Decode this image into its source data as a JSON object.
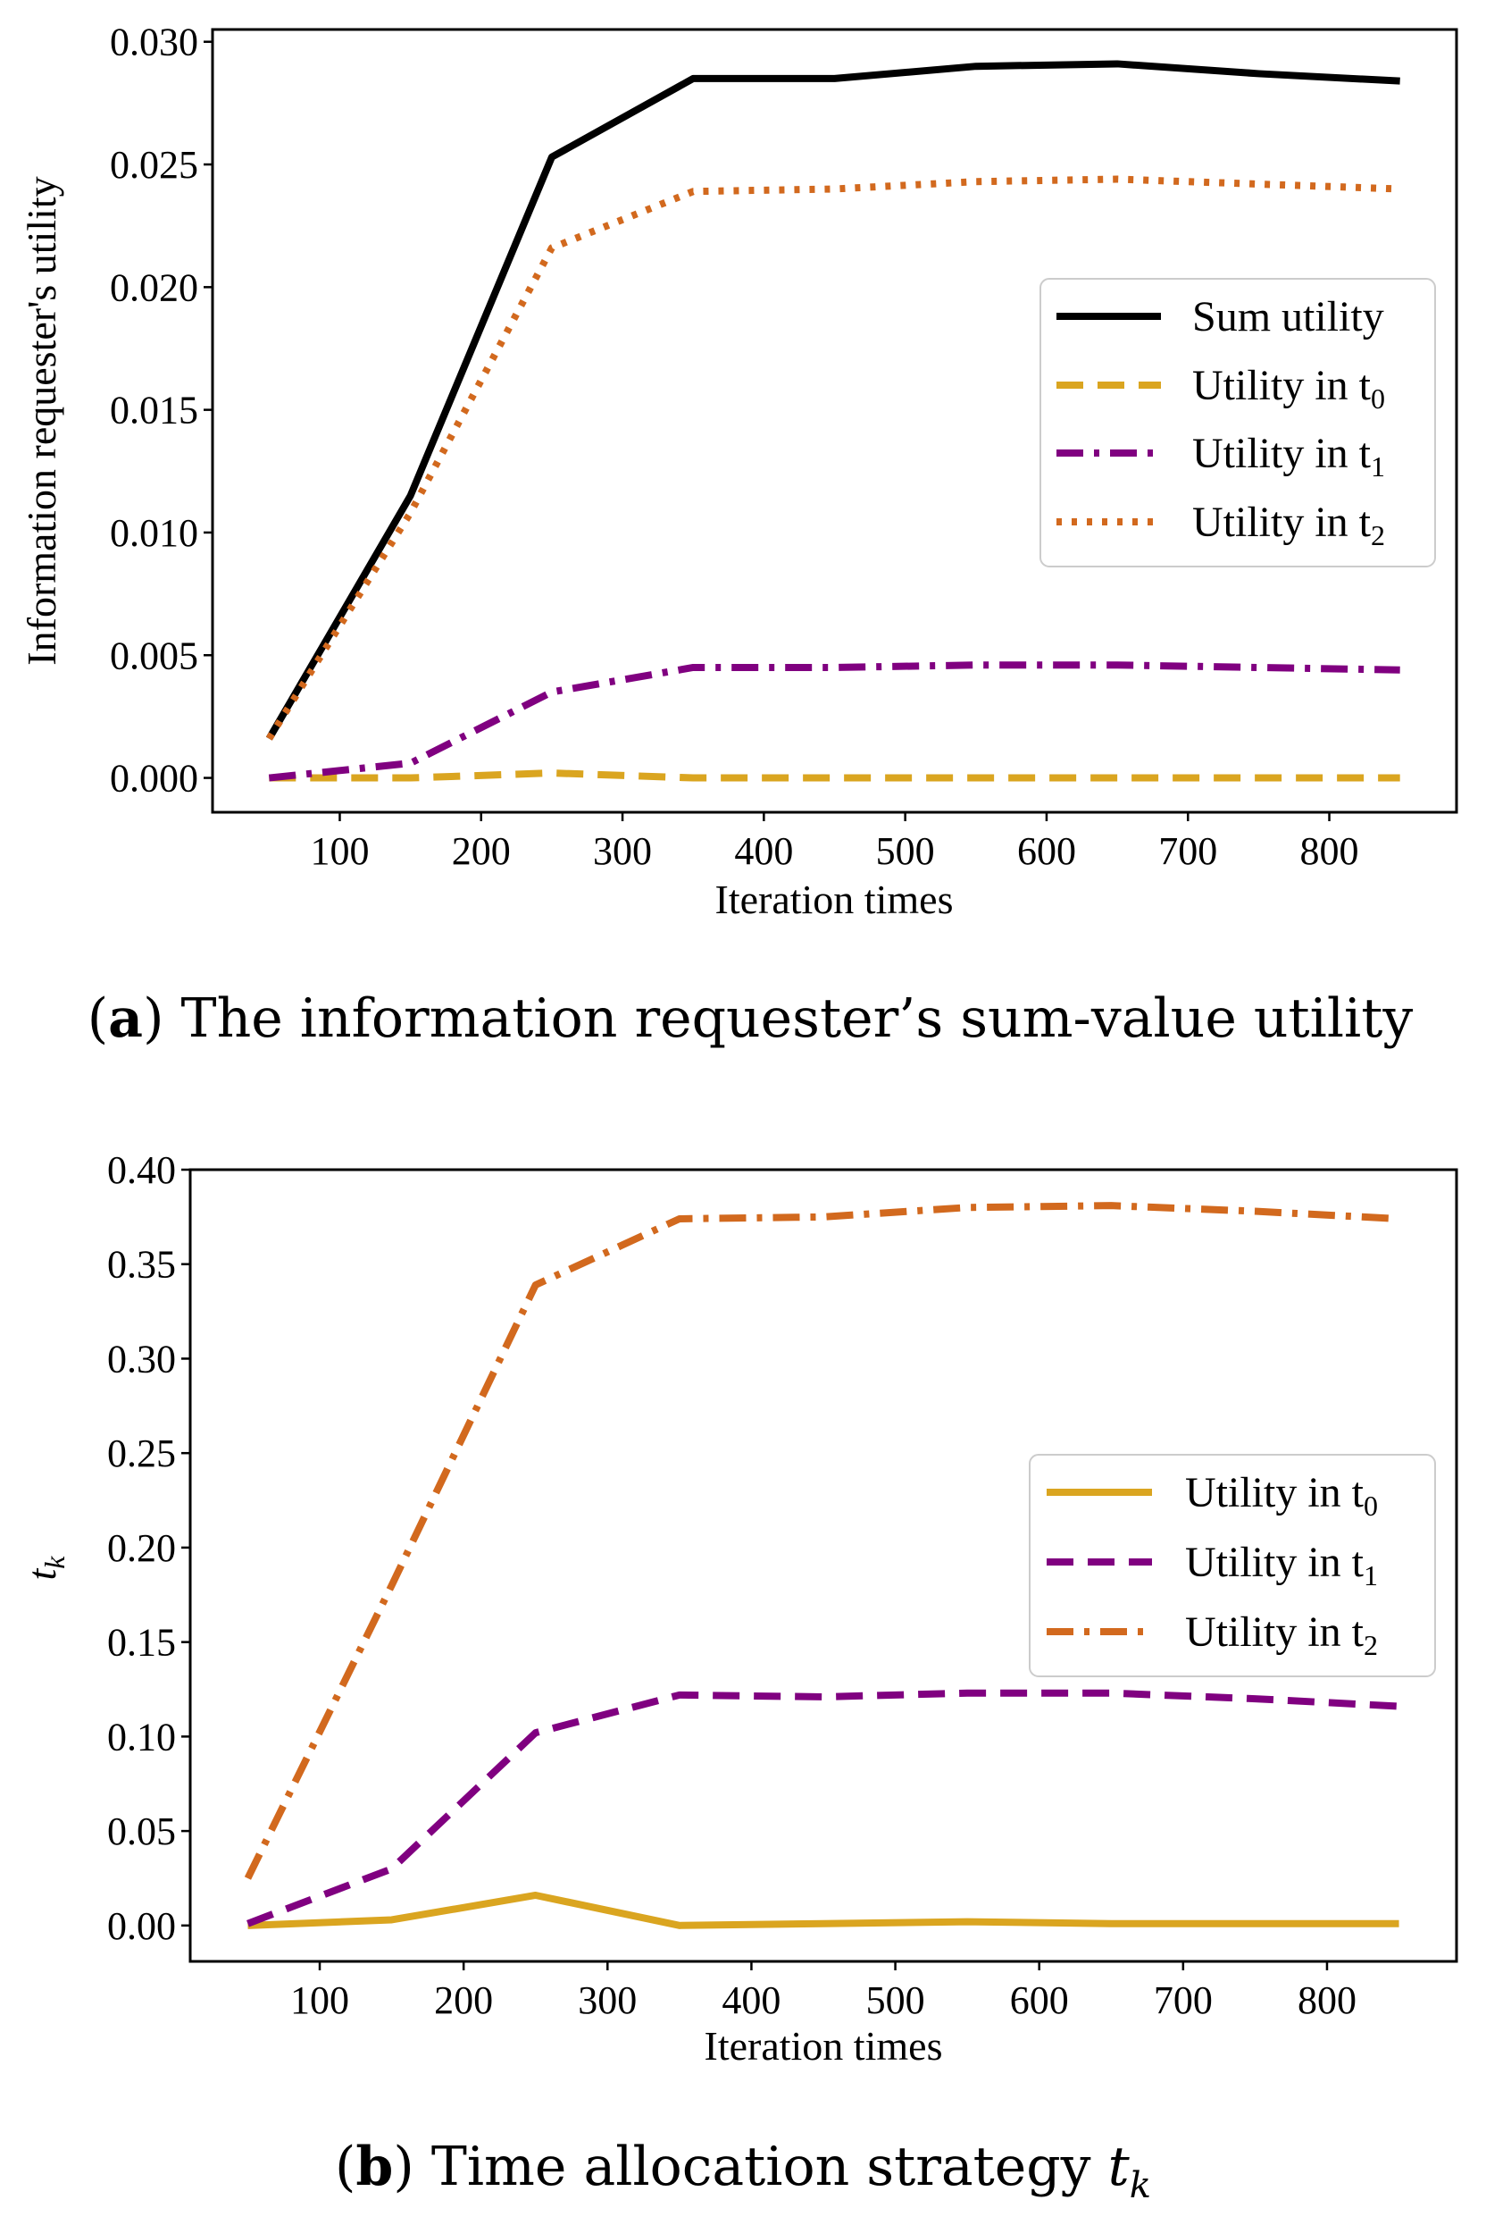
{
  "chart_data": [
    {
      "type": "line",
      "caption_label": "a",
      "caption_text": "The information requester’s sum-value utility",
      "xlabel": "Iteration times",
      "ylabel": "Information requester's utility",
      "x": [
        50,
        150,
        250,
        350,
        450,
        550,
        650,
        750,
        850
      ],
      "xlim": [
        10,
        890
      ],
      "ylim": [
        -0.0014,
        0.0305
      ],
      "xticks": [
        100,
        200,
        300,
        400,
        500,
        600,
        700,
        800
      ],
      "yticks": [
        0.0,
        0.005,
        0.01,
        0.015,
        0.02,
        0.025,
        0.03
      ],
      "ytick_labels": [
        "0.000",
        "0.005",
        "0.010",
        "0.015",
        "0.020",
        "0.025",
        "0.030"
      ],
      "legend_position": "center-right",
      "series": [
        {
          "name": "Sum utility",
          "legend_main": "Sum utility",
          "legend_sub": "",
          "color": "#000000",
          "dash": "",
          "values": [
            0.0016,
            0.0115,
            0.0253,
            0.0285,
            0.0285,
            0.029,
            0.0291,
            0.0287,
            0.0284
          ]
        },
        {
          "name": "Utility in t0",
          "legend_main": "Utility in t",
          "legend_sub": "0",
          "color": "#DAA520",
          "dash": "30,16",
          "values": [
            0.0,
            0.0,
            0.0002,
            0.0,
            0.0,
            0.0,
            0.0,
            0.0,
            0.0
          ]
        },
        {
          "name": "Utility in t1",
          "legend_main": "Utility in t",
          "legend_sub": "1",
          "color": "#800080",
          "dash": "30,12,6,12",
          "values": [
            0.0,
            0.0006,
            0.0035,
            0.0045,
            0.0045,
            0.0046,
            0.0046,
            0.0045,
            0.0044
          ]
        },
        {
          "name": "Utility in t2",
          "legend_main": "Utility in t",
          "legend_sub": "2",
          "color": "#D2691E",
          "dash": "6,11",
          "values": [
            0.0016,
            0.0108,
            0.0216,
            0.0239,
            0.024,
            0.0243,
            0.0244,
            0.0242,
            0.024
          ]
        }
      ]
    },
    {
      "type": "line",
      "caption_label": "b",
      "caption_text": "Time allocation strategy ",
      "caption_var": "t",
      "caption_var_sub": "k",
      "xlabel": "Iteration times",
      "ylabel": "t",
      "ylabel_sub": "k",
      "x": [
        50,
        150,
        250,
        350,
        450,
        550,
        650,
        750,
        850
      ],
      "xlim": [
        10,
        890
      ],
      "ylim": [
        -0.019,
        0.4
      ],
      "xticks": [
        100,
        200,
        300,
        400,
        500,
        600,
        700,
        800
      ],
      "yticks": [
        0.0,
        0.05,
        0.1,
        0.15,
        0.2,
        0.25,
        0.3,
        0.35,
        0.4
      ],
      "ytick_labels": [
        "0.00",
        "0.05",
        "0.10",
        "0.15",
        "0.20",
        "0.25",
        "0.30",
        "0.35",
        "0.40"
      ],
      "legend_position": "center-right",
      "series": [
        {
          "name": "Utility in t0",
          "legend_main": "Utility in t",
          "legend_sub": "0",
          "color": "#DAA520",
          "dash": "",
          "values": [
            0.0,
            0.003,
            0.016,
            0.0,
            0.001,
            0.002,
            0.001,
            0.001,
            0.001
          ]
        },
        {
          "name": "Utility in t1",
          "legend_main": "Utility in t",
          "legend_sub": "1",
          "color": "#800080",
          "dash": "30,16",
          "values": [
            0.001,
            0.03,
            0.102,
            0.122,
            0.121,
            0.123,
            0.123,
            0.12,
            0.116
          ]
        },
        {
          "name": "Utility in t2",
          "legend_main": "Utility in t",
          "legend_sub": "2",
          "color": "#D2691E",
          "dash": "30,12,6,12",
          "values": [
            0.025,
            0.18,
            0.339,
            0.374,
            0.375,
            0.38,
            0.381,
            0.378,
            0.374
          ]
        }
      ]
    }
  ]
}
